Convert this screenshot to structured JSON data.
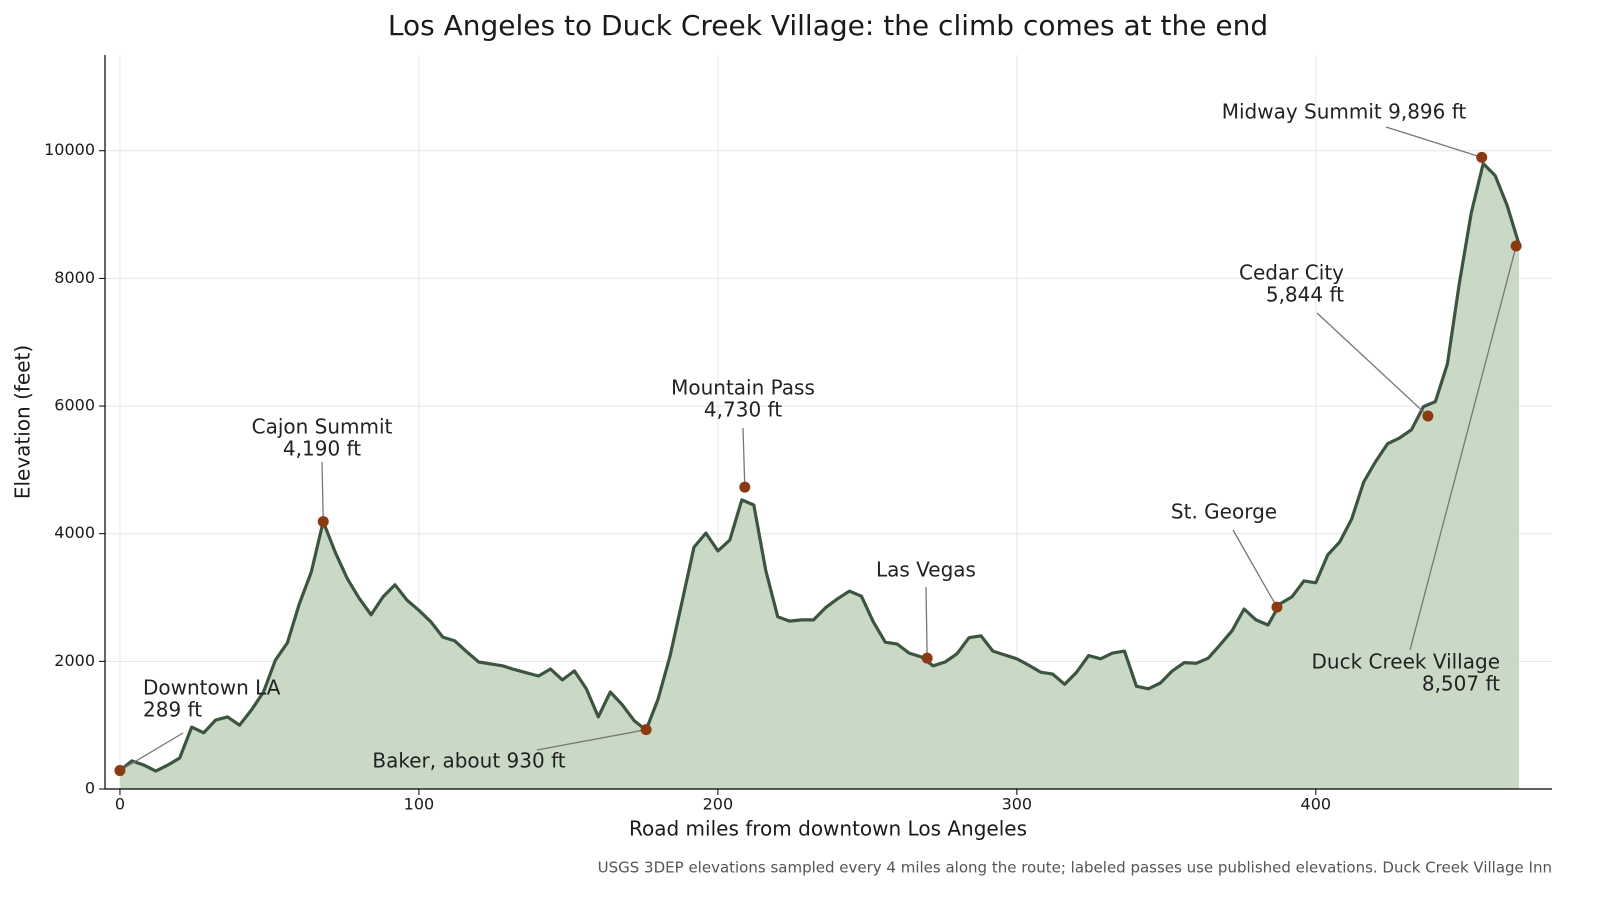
{
  "chart_data": {
    "type": "area",
    "title": "Los Angeles to Duck Creek Village: the climb comes at the end",
    "x_label": "Road miles from downtown Los Angeles",
    "y_label": "Elevation (feet)",
    "note": "USGS 3DEP elevations sampled every 4 miles along the route; labeled passes use published elevations. Duck Creek Village Inn",
    "xlim": [
      -5,
      479
    ],
    "ylim": [
      0,
      11500
    ],
    "xticks": [
      0,
      100,
      200,
      300,
      400
    ],
    "yticks": [
      0,
      2000,
      4000,
      6000,
      8000,
      10000
    ],
    "grid": true,
    "line_color": "#3b5540",
    "fill_color": "#c9d9c5",
    "marker_color": "#8b3a12",
    "x": [
      0,
      4,
      8,
      12,
      16,
      20,
      24,
      28,
      32,
      36,
      40,
      44,
      48,
      52,
      56,
      60,
      64,
      68,
      72,
      76,
      80,
      84,
      88,
      92,
      96,
      100,
      104,
      108,
      112,
      116,
      120,
      124,
      128,
      132,
      136,
      140,
      144,
      148,
      152,
      156,
      160,
      164,
      168,
      172,
      176,
      180,
      184,
      188,
      192,
      196,
      200,
      204,
      208,
      212,
      216,
      220,
      224,
      228,
      232,
      236,
      240,
      244,
      248,
      252,
      256,
      260,
      264,
      268,
      272,
      276,
      280,
      284,
      288,
      292,
      296,
      300,
      304,
      308,
      312,
      316,
      320,
      324,
      328,
      332,
      336,
      340,
      344,
      348,
      352,
      356,
      360,
      364,
      368,
      372,
      376,
      380,
      384,
      388,
      392,
      396,
      400,
      404,
      408,
      412,
      416,
      420,
      424,
      428,
      432,
      436,
      440,
      444,
      448,
      452,
      456,
      460,
      464,
      468
    ],
    "values": [
      289,
      440,
      375,
      280,
      375,
      485,
      970,
      880,
      1080,
      1130,
      1000,
      1240,
      1520,
      2020,
      2290,
      2900,
      3400,
      4190,
      3710,
      3300,
      2990,
      2730,
      3010,
      3200,
      2960,
      2800,
      2620,
      2380,
      2320,
      2150,
      1990,
      1960,
      1930,
      1870,
      1820,
      1770,
      1880,
      1710,
      1850,
      1570,
      1130,
      1520,
      1320,
      1070,
      925,
      1410,
      2080,
      2930,
      3790,
      4010,
      3730,
      3900,
      4530,
      4450,
      3430,
      2700,
      2630,
      2650,
      2650,
      2840,
      2980,
      3100,
      3020,
      2620,
      2300,
      2270,
      2130,
      2070,
      1930,
      1990,
      2120,
      2370,
      2400,
      2160,
      2100,
      2040,
      1940,
      1830,
      1800,
      1640,
      1830,
      2090,
      2040,
      2130,
      2160,
      1610,
      1570,
      1660,
      1850,
      1980,
      1970,
      2050,
      2260,
      2480,
      2820,
      2650,
      2570,
      2900,
      3010,
      3260,
      3230,
      3670,
      3870,
      4230,
      4810,
      5130,
      5410,
      5500,
      5630,
      5990,
      6070,
      6660,
      7920,
      9030,
      9800,
      9610,
      9140,
      8530
    ],
    "annotations": [
      {
        "x": 0,
        "y": 289,
        "text": [
          "Downtown LA",
          "289 ft"
        ]
      },
      {
        "x": 68,
        "y": 4190,
        "text": [
          "Cajon Summit",
          "4,190 ft"
        ]
      },
      {
        "x": 176,
        "y": 930,
        "text": [
          "Baker, about 930 ft"
        ]
      },
      {
        "x": 209,
        "y": 4730,
        "text": [
          "Mountain Pass",
          "4,730 ft"
        ]
      },
      {
        "x": 270,
        "y": 2050,
        "text": [
          "Las Vegas"
        ]
      },
      {
        "x": 387,
        "y": 2850,
        "text": [
          "St. George"
        ]
      },
      {
        "x": 437.5,
        "y": 5844,
        "text": [
          "Cedar City",
          "5,844 ft"
        ]
      },
      {
        "x": 455.5,
        "y": 9896,
        "text": [
          "Midway Summit 9,896 ft"
        ]
      },
      {
        "x": 467,
        "y": 8507,
        "text": [
          "Duck Creek Village",
          "8,507 ft"
        ]
      }
    ]
  }
}
